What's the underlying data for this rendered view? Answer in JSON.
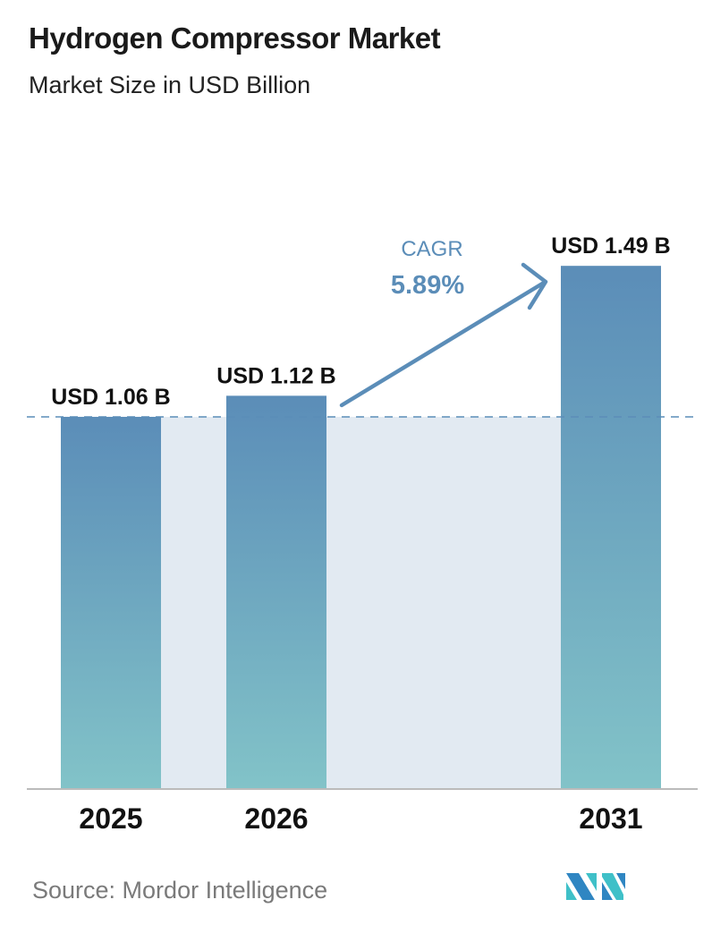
{
  "chart_data": {
    "type": "bar",
    "title": "Hydrogen Compressor Market",
    "subtitle": "Market Size in USD Billion",
    "categories": [
      "2025",
      "2026",
      "2031"
    ],
    "values": [
      1.06,
      1.12,
      1.49
    ],
    "data_labels": [
      "USD 1.06 B",
      "USD 1.12 B",
      "USD 1.49 B"
    ],
    "unit": "USD Billion",
    "ylim": [
      0,
      1.6
    ],
    "grid": false,
    "reference_line": {
      "value": 1.06,
      "style": "dashed"
    },
    "annotation": {
      "label": "CAGR",
      "value": "5.89%"
    },
    "colors": {
      "bar_top": "#5b8db8",
      "bar_bottom": "#82c3c8",
      "band": "#e2eaf2",
      "accent": "#5b8db8",
      "text": "#111111"
    }
  },
  "footer": {
    "source": "Source:  Mordor Intelligence",
    "logo_text": "MI"
  }
}
